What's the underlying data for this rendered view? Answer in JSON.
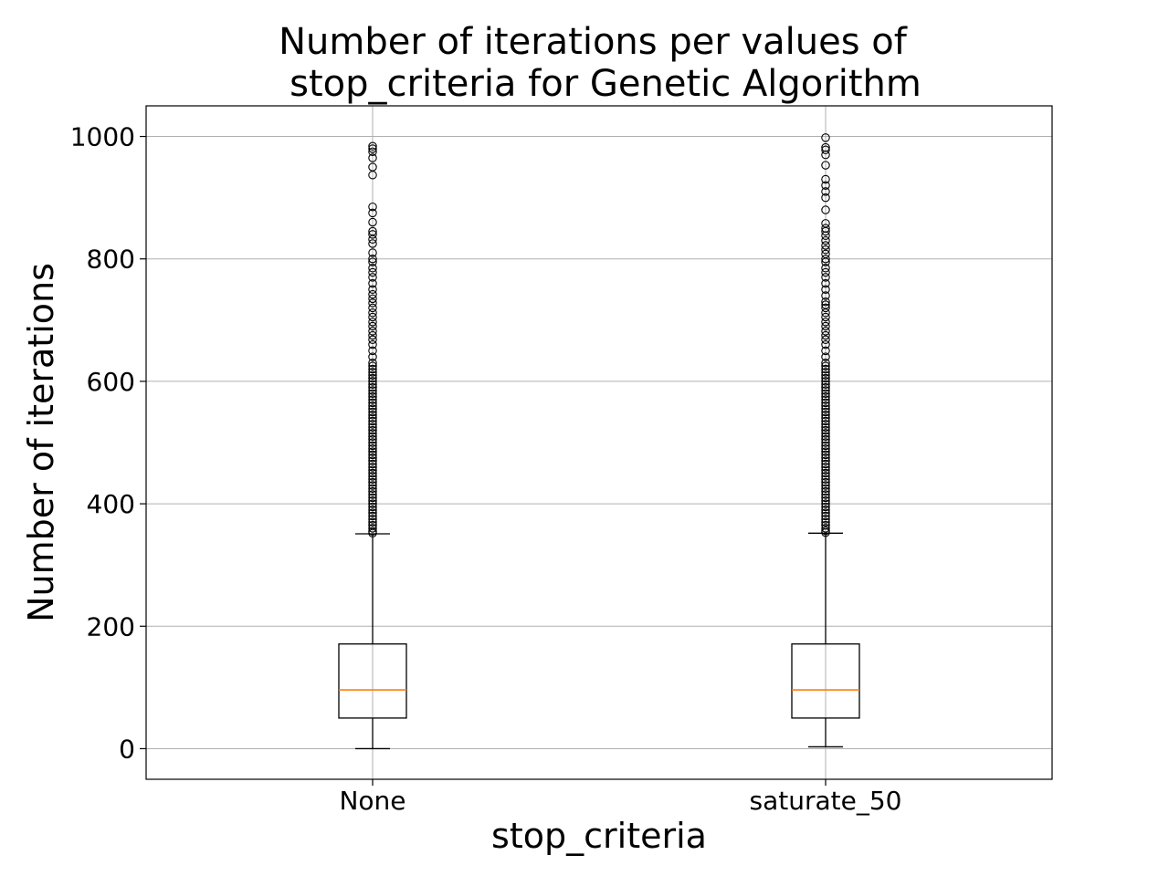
{
  "chart_data": {
    "type": "box",
    "title_lines": [
      "Number of iterations per values of",
      "stop_criteria for Genetic Algorithm"
    ],
    "xlabel": "stop_criteria",
    "ylabel": "Number of iterations",
    "categories": [
      "None",
      "saturate_50"
    ],
    "ylim": [
      -50,
      1050
    ],
    "yticks": [
      0,
      200,
      400,
      600,
      800,
      1000
    ],
    "grid": true,
    "colors": {
      "box": "#000000",
      "median": "#ff7f0e",
      "grid": "#b0b0b0"
    },
    "boxes": [
      {
        "name": "None",
        "whisker_low": 0,
        "q1": 50,
        "median": 96,
        "q3": 171,
        "whisker_high": 351,
        "outliers": [
          352,
          355,
          360,
          365,
          370,
          375,
          380,
          385,
          390,
          395,
          400,
          405,
          410,
          415,
          420,
          425,
          430,
          435,
          440,
          445,
          450,
          455,
          460,
          465,
          470,
          475,
          480,
          485,
          490,
          495,
          500,
          505,
          510,
          515,
          520,
          525,
          530,
          535,
          540,
          545,
          550,
          555,
          560,
          565,
          570,
          575,
          580,
          585,
          590,
          595,
          600,
          605,
          610,
          615,
          620,
          625,
          630,
          640,
          650,
          660,
          668,
          675,
          682,
          690,
          697,
          705,
          712,
          720,
          728,
          735,
          742,
          750,
          760,
          770,
          778,
          785,
          795,
          800,
          810,
          825,
          832,
          840,
          845,
          860,
          875,
          885,
          937,
          950,
          965,
          975,
          980,
          984
        ]
      },
      {
        "name": "saturate_50",
        "whisker_low": 3,
        "q1": 50,
        "median": 96,
        "q3": 171,
        "whisker_high": 352,
        "outliers": [
          353,
          356,
          360,
          365,
          370,
          375,
          380,
          385,
          390,
          395,
          400,
          405,
          410,
          415,
          420,
          425,
          430,
          435,
          440,
          445,
          450,
          455,
          460,
          465,
          470,
          475,
          480,
          485,
          490,
          495,
          500,
          505,
          510,
          515,
          520,
          525,
          530,
          535,
          540,
          545,
          550,
          555,
          560,
          565,
          570,
          575,
          580,
          585,
          590,
          595,
          600,
          605,
          610,
          615,
          620,
          625,
          630,
          640,
          650,
          660,
          668,
          675,
          682,
          690,
          697,
          705,
          712,
          720,
          725,
          730,
          740,
          750,
          760,
          770,
          778,
          785,
          795,
          800,
          808,
          815,
          822,
          830,
          838,
          845,
          850,
          858,
          880,
          900,
          910,
          920,
          930,
          953,
          970,
          978,
          982,
          998
        ]
      }
    ]
  }
}
